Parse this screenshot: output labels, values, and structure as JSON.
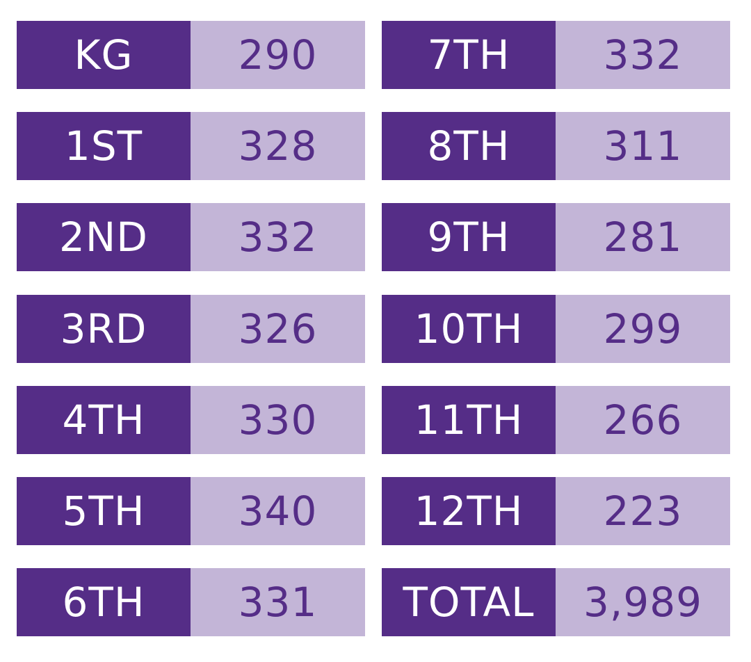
{
  "columns": [
    [
      {
        "label": "KG",
        "value": "290"
      },
      {
        "label": "1ST",
        "value": "328"
      },
      {
        "label": "2ND",
        "value": "332"
      },
      {
        "label": "3RD",
        "value": "326"
      },
      {
        "label": "4TH",
        "value": "330"
      },
      {
        "label": "5TH",
        "value": "340"
      },
      {
        "label": "6TH",
        "value": "331"
      }
    ],
    [
      {
        "label": "7TH",
        "value": "332"
      },
      {
        "label": "8TH",
        "value": "311"
      },
      {
        "label": "9TH",
        "value": "281"
      },
      {
        "label": "10TH",
        "value": "299"
      },
      {
        "label": "11TH",
        "value": "266"
      },
      {
        "label": "12TH",
        "value": "223"
      },
      {
        "label": "TOTAL",
        "value": "3,989"
      }
    ]
  ]
}
